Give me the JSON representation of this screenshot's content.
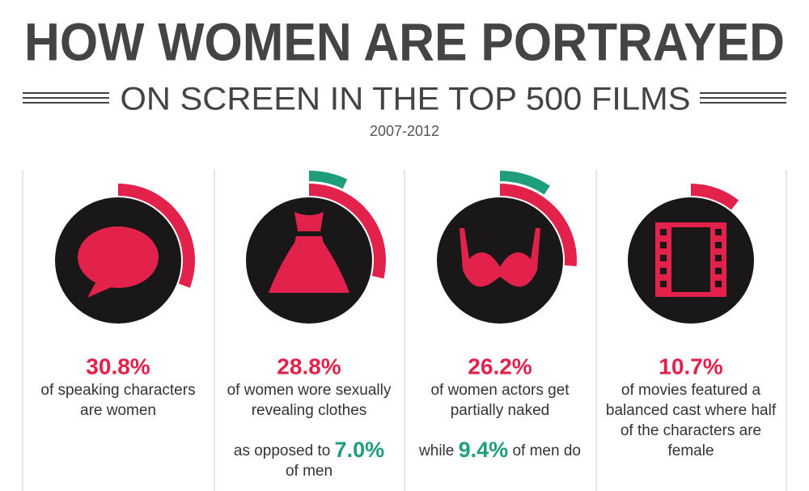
{
  "header": {
    "title": "HOW WOMEN ARE PORTRAYED",
    "subtitle": "ON SCREEN IN THE TOP 500 FILMS",
    "period": "2007-2012"
  },
  "colors": {
    "women": "#e3224b",
    "men": "#1f9e7d"
  },
  "panels": [
    {
      "value": 30.8,
      "value_label": "30.8%",
      "text_lines": [
        "of speaking characters",
        "are women"
      ]
    },
    {
      "value": 28.8,
      "value_label": "28.8%",
      "text_lines": [
        "of women wore sexually",
        "revealing clothes"
      ],
      "comparison": {
        "before": "as opposed to",
        "value": 7.0,
        "value_label": "7.0%",
        "after": "of men"
      }
    },
    {
      "value": 26.2,
      "value_label": "26.2%",
      "text_lines": [
        "of women actors get",
        "partially naked"
      ],
      "comparison": {
        "before": "while",
        "value": 9.4,
        "value_label": "9.4%",
        "after": "of men do"
      }
    },
    {
      "value": 10.7,
      "value_label": "10.7%",
      "text_lines": [
        "of movies featured a",
        "balanced cast where half",
        "of the characters are",
        "female"
      ]
    }
  ]
}
